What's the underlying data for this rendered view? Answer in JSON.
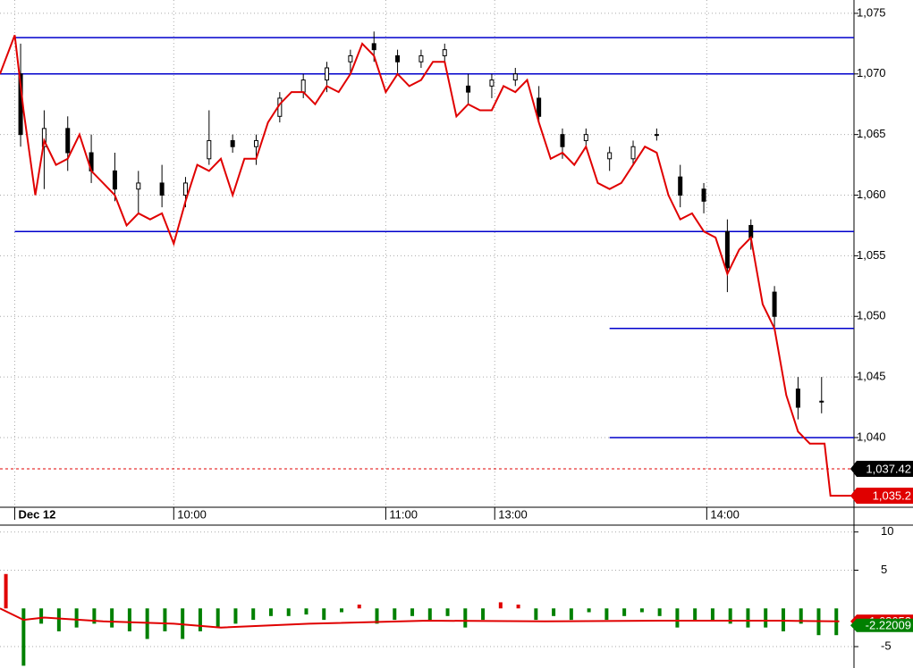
{
  "chart_data": [
    {
      "type": "candlestick",
      "xlim": [
        -5,
        285
      ],
      "ylim": [
        1034.25,
        1076.1
      ],
      "xticks": [
        {
          "value": 0,
          "label": "Dec 12"
        },
        {
          "value": 54,
          "label": "10:00"
        },
        {
          "value": 126,
          "label": "11:00"
        },
        {
          "value": 163,
          "label": "13:00"
        },
        {
          "value": 235,
          "label": "14:00"
        }
      ],
      "yticks": [
        {
          "value": 1040,
          "label": "1,040"
        },
        {
          "value": 1045,
          "label": "1,045"
        },
        {
          "value": 1050,
          "label": "1,050"
        },
        {
          "value": 1055,
          "label": "1,055"
        },
        {
          "value": 1060,
          "label": "1,060"
        },
        {
          "value": 1065,
          "label": "1,065"
        },
        {
          "value": 1070,
          "label": "1,070"
        },
        {
          "value": 1075,
          "label": "1,075"
        }
      ],
      "grid": true,
      "candles": {
        "color": "#000000",
        "x": [
          2,
          10,
          18,
          26,
          34,
          42,
          50,
          58,
          66,
          74,
          82,
          90,
          98,
          106,
          114,
          122,
          130,
          138,
          146,
          154,
          162,
          170,
          178,
          186,
          194,
          202,
          210,
          218,
          226,
          234,
          242,
          250,
          258,
          266,
          274
        ],
        "open": [
          1070,
          1064,
          1065.5,
          1063.5,
          1062,
          1060.5,
          1061,
          1060,
          1063,
          1064.5,
          1064,
          1066.5,
          1068.5,
          1069.5,
          1071,
          1072.5,
          1071.5,
          1071,
          1071.5,
          1069,
          1069,
          1069.5,
          1068,
          1065,
          1064.5,
          1063,
          1063,
          1065,
          1061.5,
          1060.5,
          1057,
          1057.5,
          1052,
          1044,
          1043
        ],
        "high": [
          1072.5,
          1067,
          1066.5,
          1065,
          1063.5,
          1062,
          1062.5,
          1061.5,
          1067,
          1065,
          1065,
          1068.5,
          1070,
          1071,
          1072,
          1073.5,
          1072,
          1072,
          1072.5,
          1070,
          1070,
          1070.5,
          1069,
          1065.5,
          1065.5,
          1064,
          1064.5,
          1065.5,
          1062.5,
          1061,
          1058,
          1058,
          1052.5,
          1045,
          1045
        ],
        "low": [
          1064,
          1060.5,
          1062,
          1061,
          1059.5,
          1058.5,
          1059,
          1059,
          1062.5,
          1063.5,
          1062.5,
          1066,
          1068,
          1068.5,
          1070,
          1071,
          1070,
          1070.5,
          1071,
          1067.5,
          1068,
          1069,
          1066,
          1063,
          1064,
          1062,
          1062.5,
          1064.5,
          1059,
          1058.5,
          1052,
          1055.5,
          1049,
          1041.5,
          1042
        ],
        "close": [
          1065,
          1065.5,
          1063.5,
          1062,
          1060.5,
          1061,
          1060,
          1061,
          1064.5,
          1064,
          1064.5,
          1068,
          1069.5,
          1070.5,
          1071.5,
          1072,
          1071,
          1071.5,
          1072,
          1068.5,
          1069.5,
          1070,
          1066.5,
          1064,
          1065,
          1063.5,
          1064,
          1065,
          1060,
          1059.5,
          1054,
          1056.5,
          1050,
          1042.5,
          1043
        ]
      },
      "line": {
        "color": "#e00000",
        "x": [
          -5,
          0,
          3,
          7,
          10,
          14,
          18,
          22,
          26,
          30,
          34,
          38,
          42,
          46,
          50,
          54,
          58,
          62,
          66,
          70,
          74,
          78,
          82,
          86,
          90,
          94,
          98,
          102,
          106,
          110,
          114,
          118,
          122,
          126,
          130,
          134,
          138,
          142,
          146,
          150,
          154,
          158,
          162,
          166,
          170,
          174,
          178,
          182,
          186,
          190,
          194,
          198,
          202,
          206,
          210,
          214,
          218,
          222,
          226,
          230,
          234,
          238,
          242,
          246,
          250,
          254,
          258,
          262,
          266,
          270,
          275,
          277,
          284
        ],
        "values": [
          1070,
          1073.2,
          1067,
          1060,
          1064.5,
          1062.5,
          1063,
          1065,
          1062,
          1061,
          1060,
          1057.5,
          1058.5,
          1058,
          1058.5,
          1056,
          1059.5,
          1062.5,
          1062,
          1063,
          1060,
          1063,
          1063,
          1066,
          1067.5,
          1068.5,
          1068.5,
          1067.5,
          1069,
          1068.5,
          1070,
          1072.5,
          1071.5,
          1068.5,
          1070,
          1069,
          1069.5,
          1071,
          1071,
          1066.5,
          1067.5,
          1067,
          1067,
          1069,
          1068.5,
          1069.5,
          1066,
          1063,
          1063.5,
          1062.5,
          1064,
          1061,
          1060.5,
          1061,
          1062.5,
          1064,
          1063.5,
          1060,
          1058,
          1058.5,
          1057,
          1056.5,
          1053.5,
          1055.5,
          1056.5,
          1051,
          1049,
          1043.5,
          1040.5,
          1039.5,
          1039.5,
          1035.2,
          1035.2
        ]
      },
      "levels": {
        "color": "#0000cc",
        "values": [
          1073,
          1070,
          1057,
          1049,
          1040
        ],
        "start": [
          0,
          -5,
          0,
          202,
          202
        ]
      },
      "markers": [
        {
          "value": 1037.42,
          "label": "1,037.42",
          "color": "#000000"
        },
        {
          "value": 1035.2,
          "label": "1,035.2",
          "color": "#e00000"
        }
      ]
    },
    {
      "type": "bar",
      "xlim": [
        -5,
        285
      ],
      "ylim": [
        -7.8,
        10.9
      ],
      "yticks": [
        10,
        5,
        -5
      ],
      "grid": true,
      "colors": {
        "up": "#e00000",
        "down": "#008000"
      },
      "x": [
        -3,
        3,
        9,
        15,
        21,
        27,
        33,
        39,
        45,
        51,
        57,
        63,
        69,
        75,
        81,
        87,
        93,
        99,
        105,
        111,
        117,
        123,
        129,
        135,
        141,
        147,
        153,
        159,
        165,
        171,
        177,
        183,
        189,
        195,
        201,
        207,
        213,
        219,
        225,
        231,
        237,
        243,
        249,
        255,
        261,
        267,
        273,
        279
      ],
      "values": [
        4.5,
        -7.5,
        -2,
        -3,
        -2.5,
        -2,
        -2.5,
        -3,
        -4,
        -3,
        -4,
        -3,
        -2.5,
        -2,
        -1.5,
        -1,
        -1,
        -0.8,
        -1.5,
        -0.5,
        0.5,
        -2,
        -1.5,
        -1,
        -1.5,
        -1,
        -2.5,
        -1.5,
        0.8,
        0.5,
        -1.5,
        -1,
        -1.5,
        -0.5,
        -1.5,
        -1,
        -0.5,
        -1,
        -2.5,
        -1.5,
        -1.5,
        -2,
        -2.5,
        -2.5,
        -3,
        -2,
        -3.5,
        -3.5
      ],
      "line": {
        "color": "#e00000",
        "x": [
          -5,
          3,
          10,
          30,
          54,
          70,
          100,
          140,
          180,
          220,
          260,
          280
        ],
        "values": [
          0,
          -1.5,
          -1.2,
          -1.7,
          -2,
          -2.5,
          -2,
          -1.6,
          -1.7,
          -1.6,
          -1.6,
          -1.7
        ]
      },
      "markers": [
        {
          "value": -1.68652,
          "label": "-1.68652",
          "color": "#e00000"
        },
        {
          "value": -2.22009,
          "label": "-2.22009",
          "color": "#008000"
        }
      ]
    }
  ]
}
